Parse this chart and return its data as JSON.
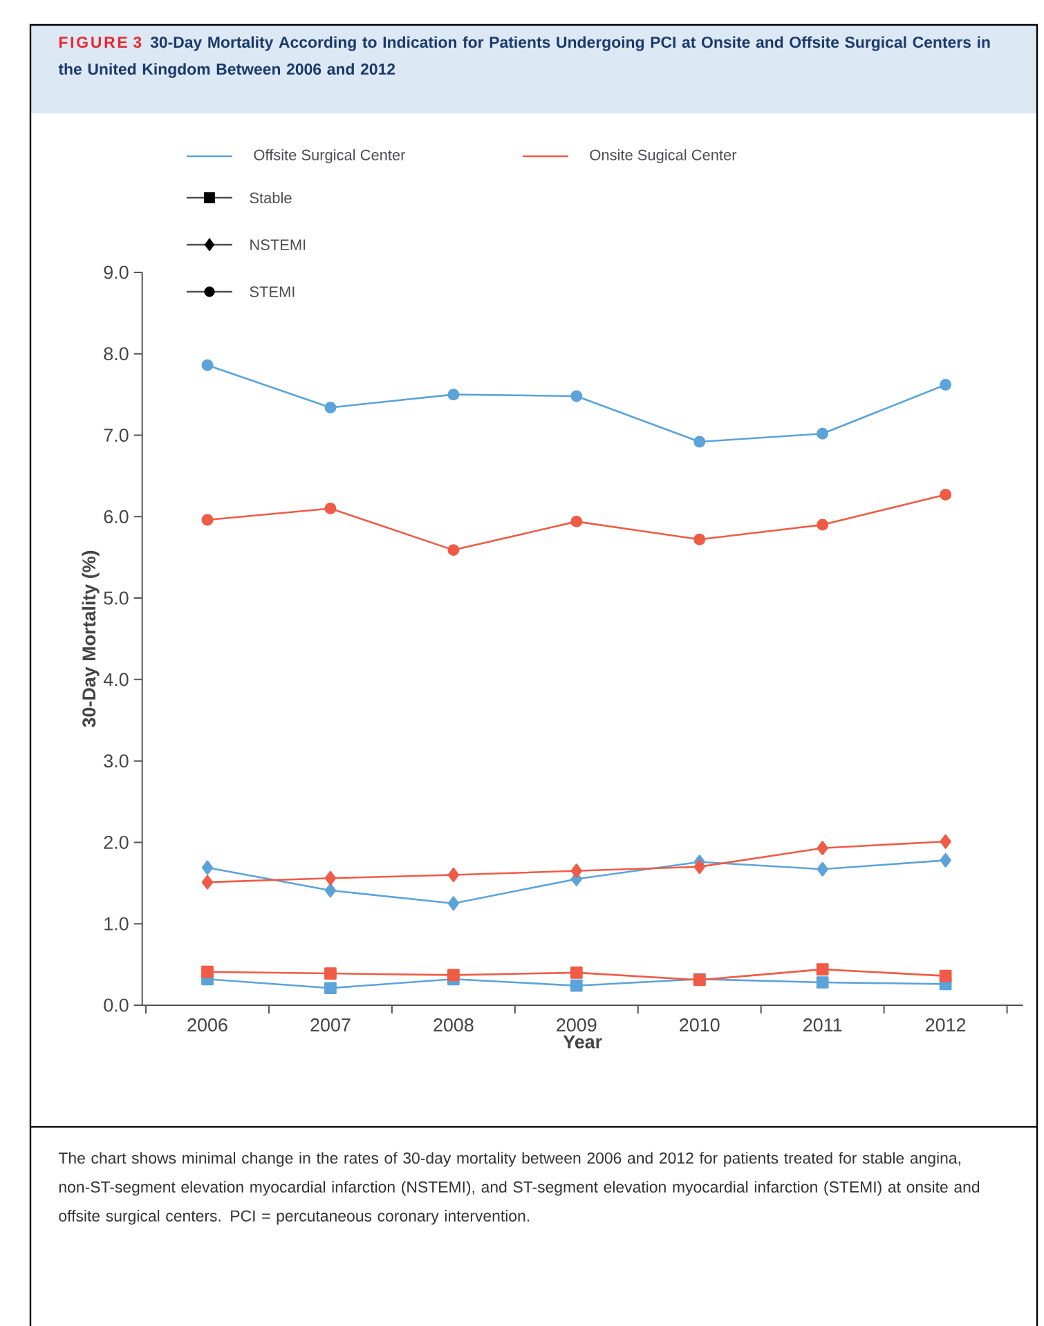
{
  "chart_data": {
    "type": "line",
    "title": "30-Day Mortality According to Indication for Patients Undergoing PCI at Onsite and Offsite Surgical Centers in the United Kingdom Between 2006 and 2012",
    "annotations": [
      "FIGURE 3",
      "The chart shows minimal change in the rates of 30-day mortality between 2006 and 2012 for patients treated for stable angina, non-ST-segment elevation myocardial infarction (NSTEMI), and ST-segment elevation myocardial infarction (STEMI) at onsite and offsite surgical centers. PCI = percutaneous coronary intervention."
    ],
    "xlabel": "Year",
    "ylabel": "30-Day Mortality (%)",
    "categories": [
      "2006",
      "2007",
      "2008",
      "2009",
      "2010",
      "2011",
      "2012"
    ],
    "ylim": [
      0,
      9
    ],
    "yticks": [
      {
        "value": 0,
        "label": "0.0"
      },
      {
        "value": 1,
        "label": "1.0"
      },
      {
        "value": 2,
        "label": "2.0"
      },
      {
        "value": 3,
        "label": "3.0"
      },
      {
        "value": 4,
        "label": "4.0"
      },
      {
        "value": 5,
        "label": "5.0"
      },
      {
        "value": 6,
        "label": "6.0"
      },
      {
        "value": 7,
        "label": "7.0"
      },
      {
        "value": 8,
        "label": "8.0"
      },
      {
        "value": 9,
        "label": "9.0"
      }
    ],
    "legend": "top left",
    "series": [
      {
        "name": "Offsite Surgical Center",
        "color": "#5ba3d9",
        "marker": "none",
        "values": [
          null,
          null,
          null,
          null,
          null,
          null,
          null
        ]
      },
      {
        "name": "Onsite Sugical Center",
        "color": "#ef5b45",
        "marker": "none",
        "values": [
          null,
          null,
          null,
          null,
          null,
          null,
          null
        ]
      },
      {
        "name": "Stable",
        "color": "#4d4d4f",
        "marker": "square",
        "values": [
          null,
          null,
          null,
          null,
          null,
          null,
          null
        ]
      },
      {
        "name": "NSTEMI",
        "color": "#4d4d4f",
        "marker": "diamond",
        "values": [
          null,
          null,
          null,
          null,
          null,
          null,
          null
        ]
      },
      {
        "name": "STEMI",
        "color": "#4d4d4f",
        "marker": "circle",
        "values": [
          null,
          null,
          null,
          null,
          null,
          null,
          null
        ]
      },
      {
        "color": "#5ba3d9",
        "marker": "square",
        "values": [
          0.32,
          0.21,
          0.32,
          0.24,
          0.32,
          0.28,
          0.26
        ]
      },
      {
        "color": "#ef5b45",
        "marker": "square",
        "values": [
          0.41,
          0.39,
          0.37,
          0.4,
          0.31,
          0.44,
          0.36
        ]
      },
      {
        "color": "#5ba3d9",
        "marker": "diamond",
        "values": [
          1.69,
          1.41,
          1.25,
          1.55,
          1.76,
          1.67,
          1.78
        ]
      },
      {
        "color": "#ef5b45",
        "marker": "diamond",
        "values": [
          1.51,
          1.56,
          1.6,
          1.65,
          1.7,
          1.93,
          2.01
        ]
      },
      {
        "color": "#5ba3d9",
        "marker": "circle",
        "values": [
          7.86,
          7.34,
          7.5,
          7.48,
          6.92,
          7.02,
          7.62
        ]
      },
      {
        "color": "#ef5b45",
        "marker": "circle",
        "values": [
          5.96,
          6.1,
          5.59,
          5.94,
          5.72,
          5.9,
          6.27
        ]
      }
    ]
  }
}
